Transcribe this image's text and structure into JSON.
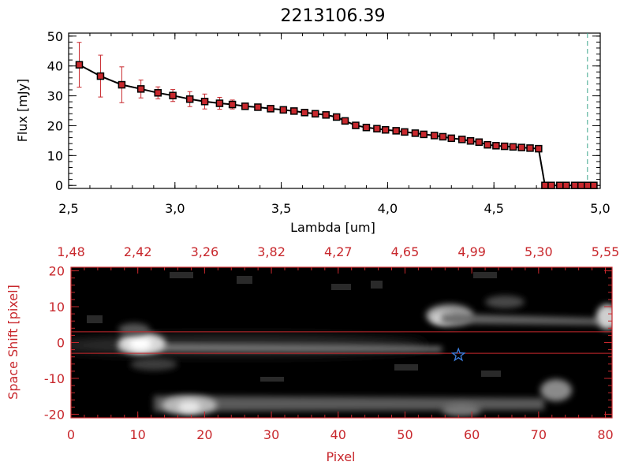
{
  "title": "2213106.39",
  "chart_data": [
    {
      "type": "line",
      "xlabel": "Lambda [um]",
      "ylabel": "Flux [mJy]",
      "xlim": [
        2.5,
        5.0
      ],
      "ylim": [
        -1,
        51
      ],
      "x_ticks": [
        2.5,
        3.0,
        3.5,
        4.0,
        4.5,
        5.0
      ],
      "x_tick_labels": [
        "2,5",
        "3,0",
        "3,5",
        "4,0",
        "4,5",
        "5,0"
      ],
      "y_ticks": [
        0,
        10,
        20,
        30,
        40,
        50
      ],
      "y_tick_labels": [
        "0",
        "10",
        "20",
        "30",
        "40",
        "50"
      ],
      "reference_line_x": 4.94,
      "series": [
        {
          "x": [
            2.55,
            2.65,
            2.75,
            2.84,
            2.92,
            2.99,
            3.07,
            3.14,
            3.21,
            3.27,
            3.33,
            3.39,
            3.45,
            3.51,
            3.56,
            3.61,
            3.66,
            3.71,
            3.76,
            3.8,
            3.85,
            3.9,
            3.95,
            3.99,
            4.04,
            4.08,
            4.13,
            4.17,
            4.22,
            4.26,
            4.3,
            4.35,
            4.39,
            4.43,
            4.47,
            4.51,
            4.55,
            4.59,
            4.63,
            4.67,
            4.71,
            4.74,
            4.77,
            4.81,
            4.84,
            4.88,
            4.91,
            4.94,
            4.97
          ],
          "y": [
            40.4,
            36.6,
            33.7,
            32.3,
            31.0,
            30.1,
            28.9,
            28.1,
            27.5,
            27.1,
            26.5,
            26.2,
            25.7,
            25.3,
            24.9,
            24.4,
            24.0,
            23.6,
            22.9,
            21.6,
            20.1,
            19.4,
            19.0,
            18.6,
            18.3,
            17.9,
            17.5,
            17.1,
            16.7,
            16.3,
            15.8,
            15.4,
            14.9,
            14.5,
            13.6,
            13.3,
            13.1,
            12.9,
            12.7,
            12.5,
            12.3,
            0.0,
            0.0,
            0.0,
            0.0,
            0.0,
            0.0,
            0.0,
            0.0
          ],
          "err": [
            7.5,
            7.0,
            6.0,
            3.0,
            2.0,
            2.0,
            2.5,
            2.5,
            2.0,
            1.5,
            1.0,
            0,
            0,
            0,
            0,
            0,
            0,
            0,
            0,
            0,
            0,
            0,
            0,
            0,
            0,
            0,
            0,
            0,
            0,
            0,
            0,
            0,
            0,
            0,
            0,
            0,
            0,
            0,
            0,
            0,
            0,
            0,
            0,
            0,
            0,
            0,
            0,
            0,
            0
          ]
        }
      ],
      "colors": {
        "line": "#000000",
        "marker": "#c8282d",
        "error": "#c8282d",
        "reference_line": "#3aa68a"
      }
    },
    {
      "type": "heatmap",
      "xlabel": "Pixel",
      "ylabel": "Space Shift [pixel]",
      "xlim": [
        0,
        81
      ],
      "ylim": [
        -21,
        21
      ],
      "x_ticks": [
        0,
        10,
        20,
        30,
        40,
        50,
        60,
        70,
        80
      ],
      "x_tick_labels": [
        "0",
        "10",
        "20",
        "30",
        "40",
        "50",
        "60",
        "70",
        "80"
      ],
      "y_ticks": [
        -20,
        -10,
        0,
        10,
        20
      ],
      "y_tick_labels": [
        "-20",
        "-10",
        "0",
        "10",
        "20"
      ],
      "top_axis_tick_labels": [
        "1,48",
        "2,42",
        "3,26",
        "3,82",
        "4,27",
        "4,65",
        "4,99",
        "5,30",
        "5,55"
      ],
      "extraction_window": [
        -3,
        3
      ],
      "source_marker": {
        "x": 58,
        "y": -3.5,
        "shape": "star"
      },
      "colors": {
        "axes": "#c8282d",
        "marker": "#3d7fe0",
        "window": "#c8282d"
      }
    }
  ]
}
